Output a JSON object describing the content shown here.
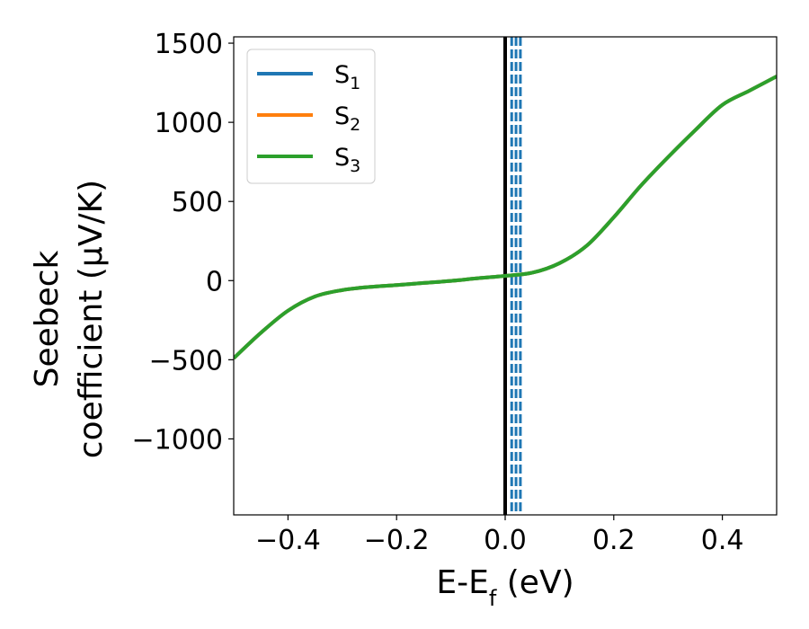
{
  "chart_data": {
    "type": "line",
    "xlabel": "E-E",
    "xlabel_sub": "f",
    "xlabel_unit": " (eV)",
    "ylabel_line1": "Seebeck",
    "ylabel_line2": "coefficient  (μV/K)",
    "xlim": [
      -0.5,
      0.5
    ],
    "ylim": [
      -1480,
      1540
    ],
    "xticks": [
      -0.4,
      -0.2,
      0.0,
      0.2,
      0.4
    ],
    "xtick_labels": [
      "−0.4",
      "−0.2",
      "0.0",
      "0.2",
      "0.4"
    ],
    "yticks": [
      -1000,
      -500,
      0,
      500,
      1000,
      1500
    ],
    "ytick_labels": [
      "−1000",
      "−500",
      "0",
      "500",
      "1000",
      "1500"
    ],
    "grid": false,
    "legend_position": "top-left",
    "x": [
      -0.5,
      -0.45,
      -0.4,
      -0.35,
      -0.3,
      -0.25,
      -0.2,
      -0.15,
      -0.1,
      -0.05,
      0.0,
      0.05,
      0.1,
      0.15,
      0.2,
      0.25,
      0.3,
      0.35,
      0.4,
      0.45,
      0.5
    ],
    "series": [
      {
        "name": "S",
        "sub": "1",
        "color": "#1f77b4",
        "values": [
          -490,
          -330,
          -190,
          -100,
          -60,
          -40,
          -28,
          -15,
          -2,
          15,
          30,
          50,
          110,
          220,
          400,
          600,
          780,
          950,
          1110,
          1200,
          1290
        ]
      },
      {
        "name": "S",
        "sub": "2",
        "color": "#ff7f0e",
        "values": [
          -490,
          -330,
          -190,
          -100,
          -60,
          -40,
          -28,
          -15,
          -2,
          15,
          30,
          50,
          110,
          220,
          400,
          600,
          780,
          950,
          1110,
          1200,
          1290
        ]
      },
      {
        "name": "S",
        "sub": "3",
        "color": "#2ca02c",
        "values": [
          -490,
          -330,
          -190,
          -100,
          -60,
          -40,
          -28,
          -15,
          -2,
          15,
          30,
          50,
          110,
          220,
          400,
          600,
          780,
          950,
          1110,
          1200,
          1290
        ]
      }
    ],
    "fermi_line": {
      "x": 0.0,
      "color": "#000000"
    },
    "dashed_lines": {
      "x": [
        0.012,
        0.02,
        0.028
      ],
      "color": "#1f77b4"
    }
  }
}
